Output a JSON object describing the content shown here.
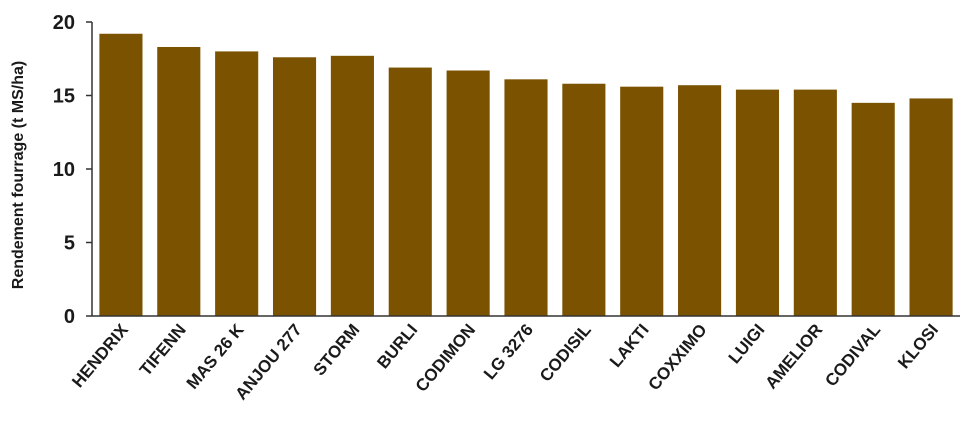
{
  "chart_data": {
    "type": "bar",
    "ylabel": "Rendement fourrage (t MS/ha)",
    "xlabel": "",
    "ylim": [
      0,
      20
    ],
    "yticks": [
      0,
      5,
      10,
      15,
      20
    ],
    "grid": false,
    "categories": [
      "HENDRIX",
      "TIFENN",
      "MAS 26 K",
      "ANJOU 277",
      "STORM",
      "BURLI",
      "CODIMON",
      "LG 3276",
      "CODISIL",
      "LAKTI",
      "COXXIMO",
      "LUIGI",
      "AMELIOR",
      "CODIVAL",
      "KLOSI"
    ],
    "values": [
      19.2,
      18.3,
      18.0,
      17.6,
      17.7,
      16.9,
      16.7,
      16.1,
      15.8,
      15.6,
      15.7,
      15.4,
      15.4,
      14.5,
      14.8
    ],
    "colors": {
      "bar": "#7a5200",
      "axis": "#333333"
    }
  }
}
